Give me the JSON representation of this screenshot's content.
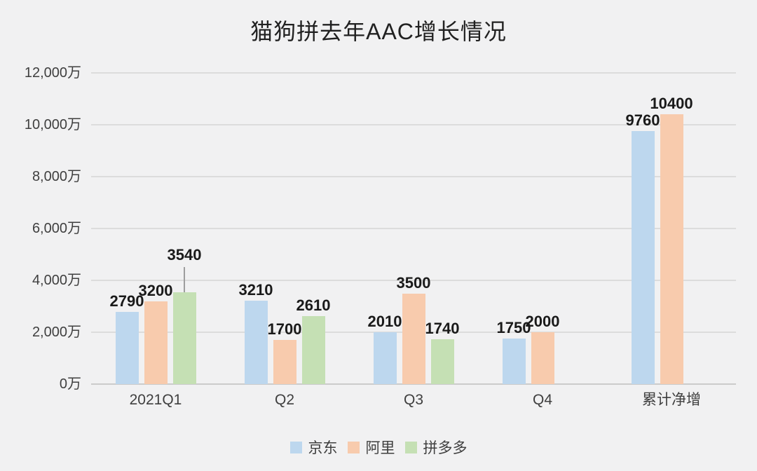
{
  "title": "猫狗拼去年AAC增长情况",
  "chart_data": {
    "type": "bar",
    "title": "猫狗拼去年AAC增长情况",
    "categories": [
      "2021Q1",
      "Q2",
      "Q3",
      "Q4",
      "累计净增"
    ],
    "series": [
      {
        "name": "京东",
        "color": "#BDD7EE",
        "values": [
          2790,
          3210,
          2010,
          1750,
          9760
        ]
      },
      {
        "name": "阿里",
        "color": "#F8CBAD",
        "values": [
          3200,
          1700,
          3500,
          2000,
          10400
        ]
      },
      {
        "name": "拼多多",
        "color": "#C5E0B4",
        "values": [
          3540,
          2610,
          1740,
          null,
          null
        ],
        "callout_label_indices": [
          0
        ]
      }
    ],
    "data_labels": true,
    "y_axis": {
      "min": 0,
      "max": 12000,
      "step": 2000,
      "unit": "万",
      "tick_labels": [
        "0万",
        "2,000万",
        "4,000万",
        "6,000万",
        "8,000万",
        "10,000万",
        "12,000万"
      ]
    },
    "grid": "horizontal",
    "legend_position": "bottom",
    "ylim": [
      0,
      12000
    ]
  },
  "legend": {
    "items": [
      {
        "label": "京东",
        "color": "#BDD7EE"
      },
      {
        "label": "阿里",
        "color": "#F8CBAD"
      },
      {
        "label": "拼多多",
        "color": "#C5E0B4"
      }
    ]
  },
  "colors": {
    "background": "#F1F1F2",
    "gridline": "#DCDCDC",
    "axis_line": "#CBCBCB",
    "axis_text": "#3F3F3F",
    "title_text": "#212121",
    "data_label_text": "#1A1A1A",
    "leader_line": "#9E9E9E"
  }
}
